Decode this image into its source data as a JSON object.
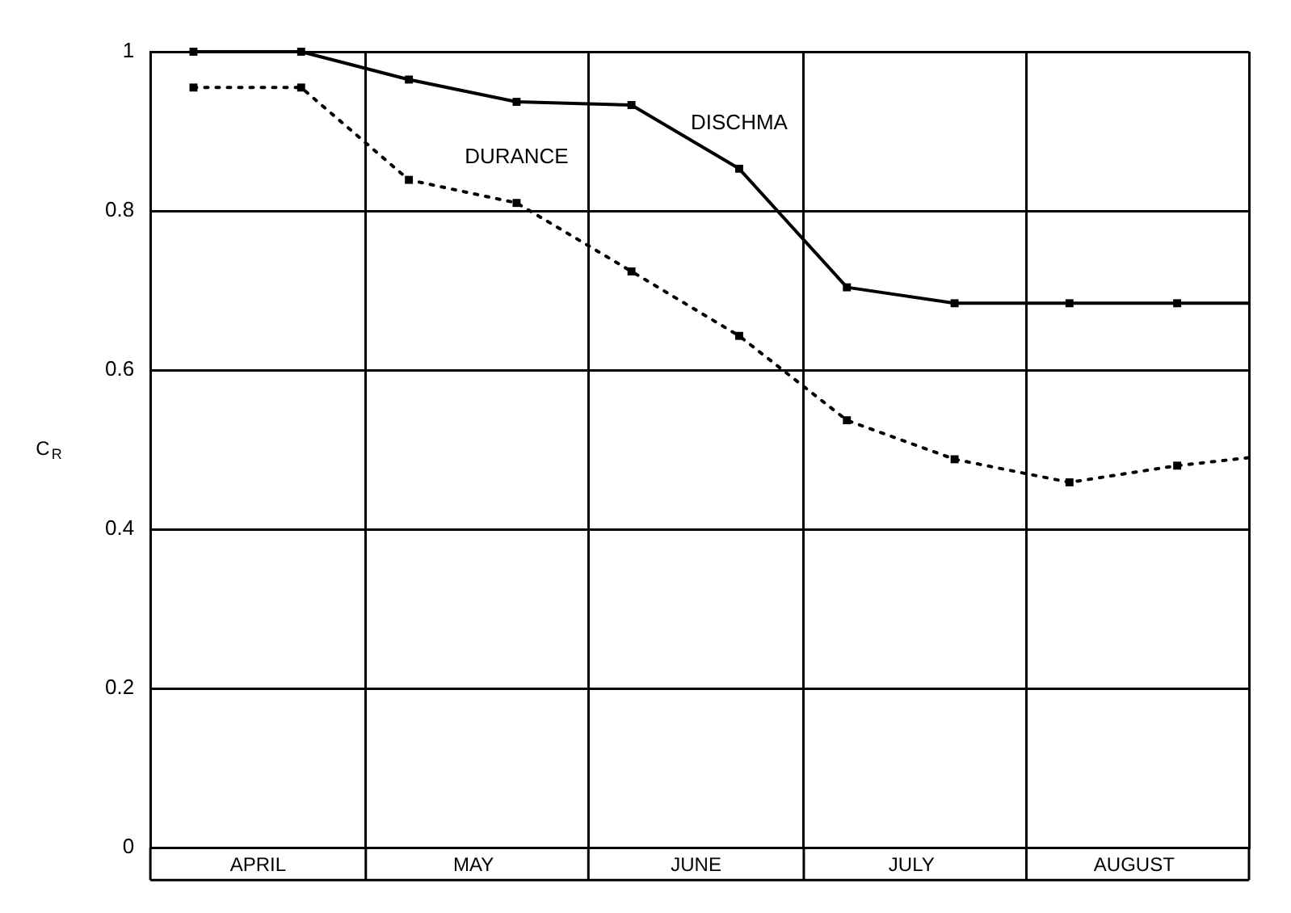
{
  "chart_data": {
    "type": "line",
    "ylabel": "C$_{R}$",
    "x": [
      "--04-07",
      "--04-22",
      "--05-07",
      "--05-22",
      "--06-07",
      "--06-22",
      "--07-07",
      "--07-22",
      "--08-07",
      "--08-22",
      "--09-01"
    ],
    "series": [
      {
        "name": "DISCHMA",
        "color": "#000000",
        "line_style": "solid",
        "values": [
          1.0,
          1.0,
          0.965,
          0.937,
          0.933,
          0.853,
          0.704,
          0.684,
          0.684,
          0.684,
          0.684
        ]
      },
      {
        "name": "DURANCE",
        "color": "#000000",
        "line_style": "dotted",
        "values": [
          0.955,
          0.955,
          0.839,
          0.81,
          0.724,
          0.643,
          0.537,
          0.488,
          0.459,
          0.48,
          0.49
        ]
      }
    ],
    "xlim": [
      "--04-01",
      "--09-01"
    ],
    "xticks": [
      {
        "value": "--04-01",
        "label": null
      },
      {
        "value": "--04-16",
        "label": "APRIL"
      },
      {
        "value": "--05-01",
        "label": null
      },
      {
        "value": "--05-16",
        "label": "MAY"
      },
      {
        "value": "--06-01",
        "label": null
      },
      {
        "value": "--06-16",
        "label": "JUNE"
      },
      {
        "value": "--07-01",
        "label": null
      },
      {
        "value": "--07-16",
        "label": "JULY"
      },
      {
        "value": "--08-01",
        "label": null
      },
      {
        "value": "--08-16",
        "label": "AUGUST"
      },
      {
        "value": "--09-01",
        "label": null
      }
    ],
    "ylim": [
      0,
      1
    ],
    "yticks": [
      0,
      0.2,
      0.4,
      0.6,
      0.8,
      1
    ],
    "grid": true,
    "legend": false,
    "marker": "square"
  }
}
